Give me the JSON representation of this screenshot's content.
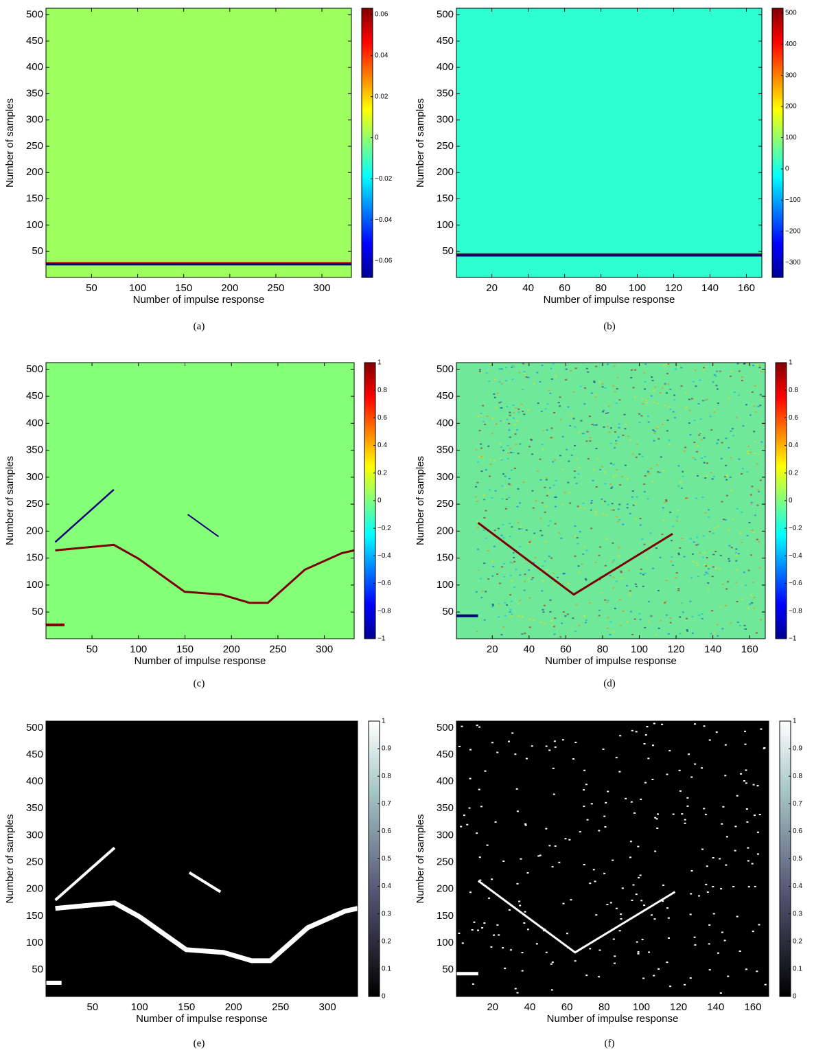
{
  "chart_data": [
    {
      "type": "heatmap",
      "caption": "(a)",
      "xlabel": "Number of impulse response",
      "ylabel": "Number of samples",
      "xlim": [
        0.5,
        332
      ],
      "ylim": [
        0.5,
        512.5
      ],
      "xticks": [
        50,
        100,
        150,
        200,
        250,
        300
      ],
      "yticks": [
        50,
        100,
        150,
        200,
        250,
        300,
        350,
        400,
        450,
        500
      ],
      "clim": [
        -0.068,
        0.063
      ],
      "cticks": [
        {
          "value": -0.06,
          "label": "−0.06"
        },
        {
          "value": -0.04,
          "label": "−0.04"
        },
        {
          "value": -0.02,
          "label": "−0.02"
        },
        0,
        0.02,
        0.04,
        0.06
      ],
      "colormap": "jet",
      "color": "#9cff5e"
    },
    {
      "type": "heatmap",
      "caption": "(b)",
      "xlabel": "Number of impulse response",
      "ylabel": "Number of samples",
      "xlim": [
        0.5,
        168.5
      ],
      "ylim": [
        0.5,
        512.5
      ],
      "xticks": [
        20,
        40,
        60,
        80,
        100,
        120,
        140,
        160
      ],
      "yticks": [
        50,
        100,
        150,
        200,
        250,
        300,
        350,
        400,
        450,
        500
      ],
      "clim": [
        -348,
        515
      ],
      "cticks": [
        {
          "value": -300,
          "label": "−300"
        },
        {
          "value": -200,
          "label": "−200"
        },
        {
          "value": -100,
          "label": "−100"
        },
        0,
        100,
        200,
        300,
        400,
        500
      ],
      "colormap": "jet",
      "color": "#2effd0"
    },
    {
      "type": "heatmap",
      "caption": "(c)",
      "xlabel": "Number of impulse response",
      "ylabel": "Number of samples",
      "xlim": [
        0.5,
        332
      ],
      "ylim": [
        0.5,
        512.5
      ],
      "xticks": [
        50,
        100,
        150,
        200,
        250,
        300
      ],
      "yticks": [
        50,
        100,
        150,
        200,
        250,
        300,
        350,
        400,
        450,
        500
      ],
      "clim": [
        -1,
        1
      ],
      "cticks": [
        {
          "value": -1,
          "label": "−1"
        },
        {
          "value": -0.8,
          "label": "−0.8"
        },
        {
          "value": -0.6,
          "label": "−0.6"
        },
        {
          "value": -0.4,
          "label": "−0.4"
        },
        {
          "value": -0.2,
          "label": "−0.2"
        },
        0,
        0.2,
        0.4,
        0.6,
        0.8,
        1
      ],
      "colormap": "jet",
      "color": "#86ff78"
    },
    {
      "type": "heatmap",
      "caption": "(d)",
      "xlabel": "Number of impulse response",
      "ylabel": "Number of samples",
      "xlim": [
        0.5,
        168.5
      ],
      "ylim": [
        0.5,
        512.5
      ],
      "xticks": [
        20,
        40,
        60,
        80,
        100,
        120,
        140,
        160
      ],
      "yticks": [
        50,
        100,
        150,
        200,
        250,
        300,
        350,
        400,
        450,
        500
      ],
      "clim": [
        -1,
        1
      ],
      "cticks": [
        {
          "value": -1,
          "label": "−1"
        },
        {
          "value": -0.8,
          "label": "−0.8"
        },
        {
          "value": -0.6,
          "label": "−0.6"
        },
        {
          "value": -0.4,
          "label": "−0.4"
        },
        {
          "value": -0.2,
          "label": "−0.2"
        },
        0,
        0.2,
        0.4,
        0.6,
        0.8,
        1
      ],
      "colormap": "jet",
      "color": "#6fe89a"
    },
    {
      "type": "heatmap",
      "caption": "(e)",
      "xlabel": "Number of impulse response",
      "ylabel": "Number of samples",
      "xlim": [
        0.5,
        332
      ],
      "ylim": [
        0.5,
        512.5
      ],
      "xticks": [
        50,
        100,
        150,
        200,
        250,
        300
      ],
      "yticks": [
        50,
        100,
        150,
        200,
        250,
        300,
        350,
        400,
        450,
        500
      ],
      "clim": [
        0,
        1
      ],
      "cticks": [
        0,
        0.1,
        0.2,
        0.3,
        0.4,
        0.5,
        0.6,
        0.7,
        0.8,
        0.9,
        1
      ],
      "colormap": "bone",
      "color": "#000000"
    },
    {
      "type": "heatmap",
      "caption": "(f)",
      "xlabel": "Number of impulse response",
      "ylabel": "Number of samples",
      "xlim": [
        0.5,
        168.5
      ],
      "ylim": [
        0.5,
        512.5
      ],
      "xticks": [
        20,
        40,
        60,
        80,
        100,
        120,
        140,
        160
      ],
      "yticks": [
        50,
        100,
        150,
        200,
        250,
        300,
        350,
        400,
        450,
        500
      ],
      "clim": [
        0,
        1
      ],
      "cticks": [
        0,
        0.1,
        0.2,
        0.3,
        0.4,
        0.5,
        0.6,
        0.7,
        0.8,
        0.9,
        1
      ],
      "colormap": "bone",
      "color": "#000000"
    }
  ]
}
